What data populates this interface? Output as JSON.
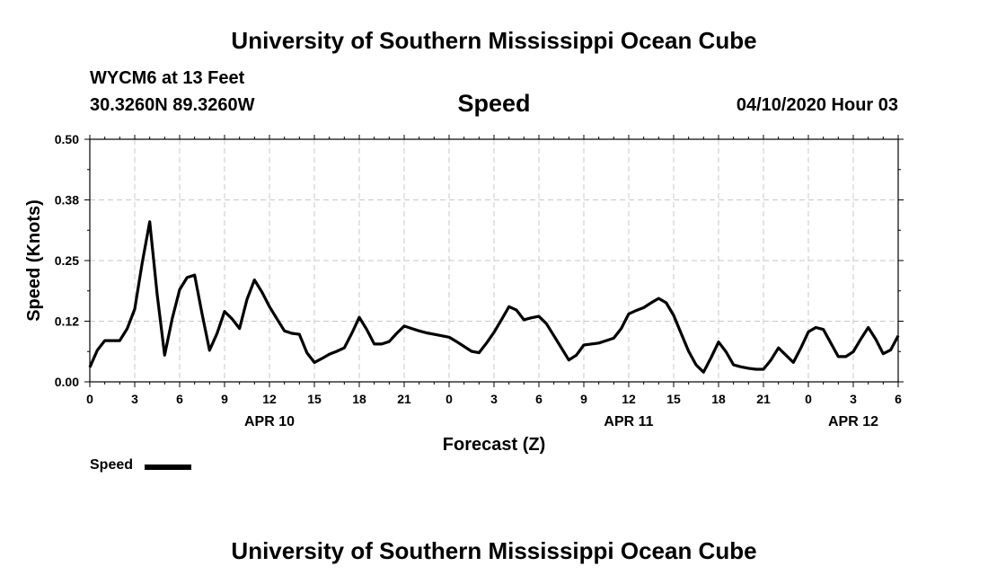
{
  "header": {
    "title": "University of Southern Mississippi Ocean Cube",
    "station": "WYCM6 at 13 Feet",
    "coordinates": "30.3260N 89.3260W",
    "chart_title": "Speed",
    "datetime": "04/10/2020 Hour 03"
  },
  "footer": {
    "title": "University of Southern Mississippi Ocean Cube"
  },
  "legend": {
    "label": "Speed"
  },
  "chart_data": {
    "type": "line",
    "title": "Speed",
    "xlabel": "Forecast (Z)",
    "ylabel": "Speed (Knots)",
    "xlim": [
      0,
      54
    ],
    "ylim": [
      0,
      0.5
    ],
    "grid": true,
    "line_color": "#000000",
    "y_ticks": [
      "0.00",
      "0.12",
      "0.25",
      "0.38",
      "0.50"
    ],
    "x_ticks": [
      "0",
      "3",
      "6",
      "9",
      "12",
      "15",
      "18",
      "21",
      "0",
      "3",
      "6",
      "9",
      "12",
      "15",
      "18",
      "21",
      "0",
      "3",
      "6"
    ],
    "date_labels": [
      {
        "label": "APR 10",
        "x": 12
      },
      {
        "label": "APR 11",
        "x": 36
      },
      {
        "label": "APR 12",
        "x": 51
      }
    ],
    "series": [
      {
        "name": "Speed",
        "x": [
          0,
          0.5,
          1,
          1.5,
          2,
          2.5,
          3,
          3.5,
          4,
          4.5,
          5,
          5.5,
          6,
          6.5,
          7,
          7.5,
          8,
          8.5,
          9,
          9.5,
          10,
          10.5,
          11,
          11.5,
          12,
          12.5,
          13,
          13.5,
          14,
          14.5,
          15,
          15.5,
          16,
          16.5,
          17,
          17.5,
          18,
          18.5,
          19,
          19.5,
          20,
          20.5,
          21,
          21.5,
          22,
          22.5,
          23,
          23.5,
          24,
          24.5,
          25,
          25.5,
          26,
          26.5,
          27,
          27.5,
          28,
          28.5,
          29,
          29.5,
          30,
          30.5,
          31,
          31.5,
          32,
          32.5,
          33,
          33.5,
          34,
          34.5,
          35,
          35.5,
          36,
          36.5,
          37,
          37.5,
          38,
          38.5,
          39,
          39.5,
          40,
          40.5,
          41,
          41.5,
          42,
          42.5,
          43,
          43.5,
          44,
          44.5,
          45,
          45.5,
          46,
          46.5,
          47,
          47.5,
          48,
          48.5,
          49,
          49.5,
          50,
          50.5,
          51,
          51.5,
          52,
          52.5,
          53,
          53.5,
          54
        ],
        "values": [
          0.03,
          0.065,
          0.085,
          0.085,
          0.085,
          0.11,
          0.15,
          0.245,
          0.33,
          0.18,
          0.055,
          0.13,
          0.19,
          0.215,
          0.22,
          0.14,
          0.065,
          0.1,
          0.145,
          0.13,
          0.11,
          0.17,
          0.21,
          0.185,
          0.155,
          0.13,
          0.105,
          0.1,
          0.098,
          0.06,
          0.04,
          0.048,
          0.057,
          0.063,
          0.07,
          0.1,
          0.133,
          0.108,
          0.078,
          0.078,
          0.083,
          0.1,
          0.115,
          0.11,
          0.105,
          0.101,
          0.098,
          0.095,
          0.092,
          0.083,
          0.073,
          0.063,
          0.06,
          0.08,
          0.102,
          0.128,
          0.155,
          0.148,
          0.128,
          0.132,
          0.135,
          0.12,
          0.095,
          0.07,
          0.045,
          0.055,
          0.076,
          0.078,
          0.08,
          0.085,
          0.09,
          0.11,
          0.14,
          0.147,
          0.153,
          0.163,
          0.172,
          0.163,
          0.137,
          0.1,
          0.063,
          0.035,
          0.02,
          0.05,
          0.082,
          0.062,
          0.035,
          0.031,
          0.028,
          0.026,
          0.026,
          0.045,
          0.07,
          0.055,
          0.04,
          0.07,
          0.103,
          0.112,
          0.108,
          0.08,
          0.052,
          0.052,
          0.062,
          0.088,
          0.112,
          0.088,
          0.058,
          0.066,
          0.095
        ]
      }
    ]
  }
}
